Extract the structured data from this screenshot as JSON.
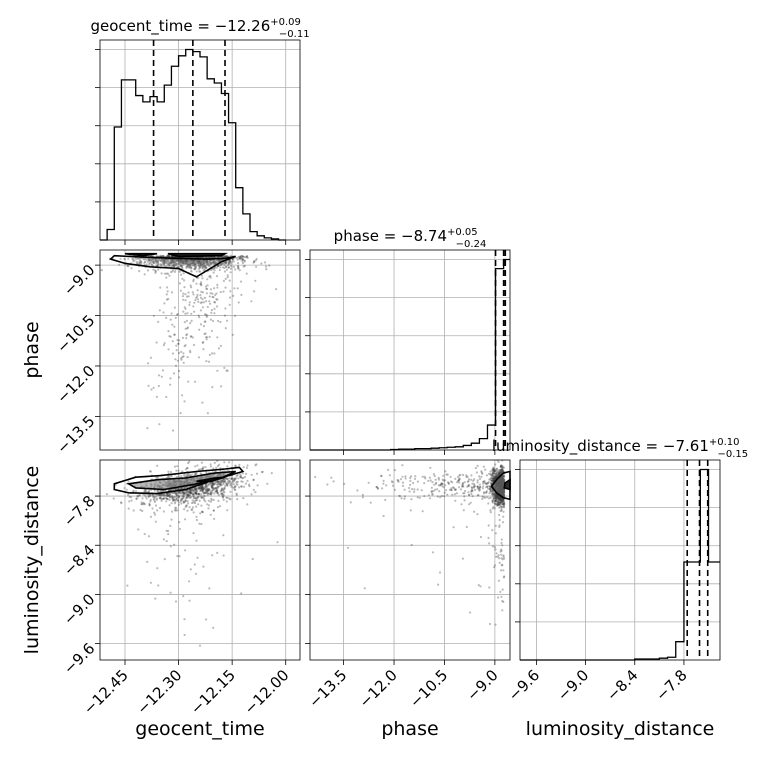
{
  "chart_data": {
    "type": "corner",
    "parameters": [
      "geocent_time",
      "phase",
      "luminosity_distance"
    ],
    "titles": [
      {
        "param": "geocent_time",
        "median": "−12.26",
        "plus": "+0.09",
        "minus": "−0.11"
      },
      {
        "param": "phase",
        "median": "−8.74",
        "plus": "+0.05",
        "minus": "−0.24"
      },
      {
        "param": "luminosity_distance",
        "median": "−7.61",
        "plus": "+0.10",
        "minus": "−0.15"
      }
    ],
    "ranges": {
      "geocent_time": [
        -12.52,
        -11.96
      ],
      "phase": [
        -14.5,
        -8.55
      ],
      "luminosity_distance": [
        -9.8,
        -7.36
      ]
    },
    "ticks": {
      "geocent_time": {
        "values": [
          -12.45,
          -12.3,
          -12.15,
          -12.0
        ],
        "labels": [
          "−12.45",
          "−12.30",
          "−12.15",
          "−12.00"
        ]
      },
      "phase": {
        "values": [
          -13.5,
          -12.0,
          -10.5,
          -9.0
        ],
        "labels": [
          "−13.5",
          "−12.0",
          "−10.5",
          "−9.0"
        ]
      },
      "luminosity_distance": {
        "values": [
          -9.6,
          -9.0,
          -8.4,
          -7.8
        ],
        "labels": [
          "−9.6",
          "−9.0",
          "−8.4",
          "−7.8"
        ]
      }
    },
    "quantiles": {
      "geocent_time": [
        -12.37,
        -12.26,
        -12.17
      ],
      "phase": [
        -8.98,
        -8.74,
        -8.69
      ],
      "luminosity_distance": [
        -7.76,
        -7.61,
        -7.51
      ]
    },
    "hist_geocent_time": {
      "edges": [
        -12.52,
        -12.5,
        -12.48,
        -12.46,
        -12.44,
        -12.42,
        -12.4,
        -12.38,
        -12.36,
        -12.34,
        -12.32,
        -12.3,
        -12.28,
        -12.26,
        -12.24,
        -12.22,
        -12.2,
        -12.18,
        -12.16,
        -12.14,
        -12.12,
        -12.1,
        -12.08,
        -12.06,
        -12.04,
        -12.02,
        -12.0
      ],
      "counts": [
        0,
        10,
        108,
        153,
        153,
        138,
        132,
        137,
        132,
        148,
        166,
        176,
        182,
        180,
        175,
        154,
        150,
        140,
        112,
        50,
        25,
        8,
        4,
        2,
        1,
        0
      ]
    },
    "hist_phase": {
      "edges": [
        -14.5,
        -14.26,
        -14.02,
        -13.78,
        -13.54,
        -13.3,
        -13.06,
        -12.82,
        -12.58,
        -12.34,
        -12.1,
        -11.86,
        -11.62,
        -11.38,
        -11.14,
        -10.9,
        -10.66,
        -10.42,
        -10.18,
        -9.94,
        -9.7,
        -9.46,
        -9.22,
        -8.98,
        -8.74,
        -8.55
      ],
      "counts": [
        0,
        0,
        0,
        0,
        0,
        0,
        0,
        0,
        0,
        0,
        1,
        2,
        2,
        3,
        3,
        4,
        5,
        6,
        7,
        10,
        15,
        25,
        55,
        400,
        420
      ]
    },
    "hist_luminosity_distance": {
      "edges": [
        -9.8,
        -9.7,
        -9.6,
        -9.5,
        -9.4,
        -9.3,
        -9.2,
        -9.1,
        -9.0,
        -8.9,
        -8.8,
        -8.7,
        -8.6,
        -8.5,
        -8.4,
        -8.3,
        -8.2,
        -8.1,
        -8.0,
        -7.9,
        -7.8,
        -7.7,
        -7.6,
        -7.5,
        -7.36
      ],
      "counts": [
        0,
        0,
        0,
        0,
        0,
        0,
        0,
        0,
        0,
        0,
        0,
        0,
        0,
        0,
        1,
        1,
        1,
        2,
        3,
        20,
        107,
        107,
        208,
        107
      ]
    },
    "contours": {
      "time_phase": [
        {
          "level": "outer",
          "points": [
            [
              -12.48,
              -8.72
            ],
            [
              -12.4,
              -8.76
            ],
            [
              -12.3,
              -8.8
            ],
            [
              -12.22,
              -8.82
            ],
            [
              -12.17,
              -8.8
            ],
            [
              -12.14,
              -8.74
            ],
            [
              -12.18,
              -8.9
            ],
            [
              -12.25,
              -9.35
            ],
            [
              -12.3,
              -9.1
            ],
            [
              -12.38,
              -9.05
            ],
            [
              -12.45,
              -8.95
            ],
            [
              -12.49,
              -8.82
            ]
          ]
        },
        {
          "level": "inner",
          "points": [
            [
              -12.45,
              -8.66
            ],
            [
              -12.4,
              -8.72
            ],
            [
              -12.36,
              -8.66
            ]
          ]
        },
        {
          "level": "inner",
          "points": [
            [
              -12.33,
              -8.66
            ],
            [
              -12.3,
              -8.74
            ],
            [
              -12.18,
              -8.72
            ],
            [
              -12.17,
              -8.66
            ]
          ]
        }
      ],
      "time_dist": [
        {
          "level": "outer",
          "points": [
            [
              -12.48,
              -7.65
            ],
            [
              -12.42,
              -7.57
            ],
            [
              -12.35,
              -7.55
            ],
            [
              -12.25,
              -7.5
            ],
            [
              -12.17,
              -7.47
            ],
            [
              -12.13,
              -7.45
            ],
            [
              -12.12,
              -7.5
            ],
            [
              -12.2,
              -7.6
            ],
            [
              -12.28,
              -7.72
            ],
            [
              -12.36,
              -7.77
            ],
            [
              -12.44,
              -7.76
            ],
            [
              -12.48,
              -7.72
            ]
          ]
        },
        {
          "level": "mid",
          "points": [
            [
              -12.44,
              -7.65
            ],
            [
              -12.36,
              -7.6
            ],
            [
              -12.28,
              -7.58
            ],
            [
              -12.2,
              -7.52
            ],
            [
              -12.14,
              -7.5
            ],
            [
              -12.18,
              -7.58
            ],
            [
              -12.26,
              -7.66
            ],
            [
              -12.34,
              -7.72
            ],
            [
              -12.42,
              -7.7
            ]
          ]
        },
        {
          "level": "inner",
          "points": [
            [
              -12.25,
              -7.62
            ],
            [
              -12.2,
              -7.58
            ],
            [
              -12.17,
              -7.57
            ],
            [
              -12.21,
              -7.62
            ]
          ]
        }
      ],
      "phase_dist": [
        {
          "level": "outer",
          "points": [
            [
              -8.55,
              -7.5
            ],
            [
              -8.75,
              -7.52
            ],
            [
              -8.95,
              -7.6
            ],
            [
              -9.1,
              -7.68
            ],
            [
              -8.95,
              -7.76
            ],
            [
              -8.75,
              -7.82
            ],
            [
              -8.55,
              -7.84
            ]
          ]
        },
        {
          "level": "inner",
          "points": [
            [
              -8.55,
              -7.6
            ],
            [
              -8.7,
              -7.64
            ],
            [
              -8.72,
              -7.7
            ],
            [
              -8.55,
              -7.72
            ]
          ]
        }
      ]
    },
    "axis_labels": {
      "bottom": [
        "geocent_time",
        "phase",
        "luminosity_distance"
      ],
      "left": [
        "phase",
        "luminosity_distance"
      ]
    }
  }
}
